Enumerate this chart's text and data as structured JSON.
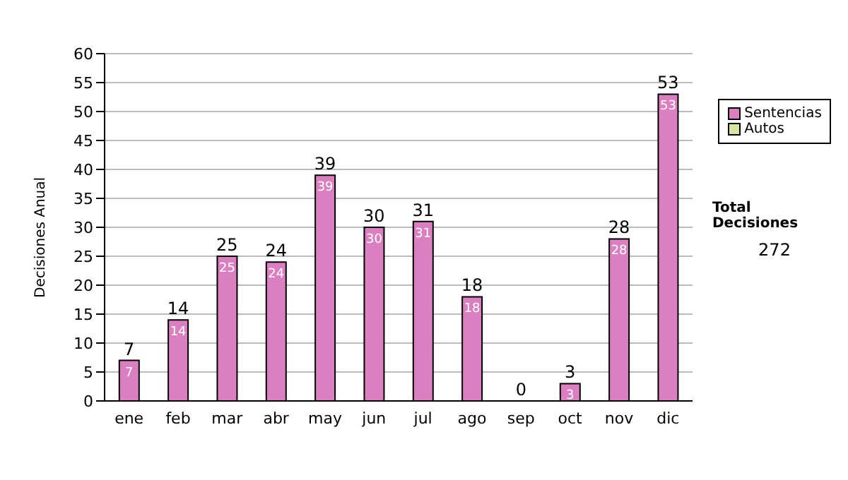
{
  "chart_data": {
    "type": "bar",
    "ylabel": "Decisiones Anual",
    "categories": [
      "ene",
      "feb",
      "mar",
      "abr",
      "may",
      "jun",
      "jul",
      "ago",
      "sep",
      "oct",
      "nov",
      "dic"
    ],
    "series": [
      {
        "name": "Sentencias",
        "color": "#dc7fc0",
        "values": [
          7,
          14,
          25,
          24,
          39,
          30,
          31,
          18,
          0,
          3,
          28,
          53
        ],
        "value_labels": [
          "7",
          "14",
          "25",
          "24",
          "39",
          "30",
          "31",
          "18",
          null,
          "3",
          "28",
          "53"
        ]
      },
      {
        "name": "Autos",
        "color": "#d6e6a0",
        "values": [
          0,
          0,
          0,
          0,
          0,
          0,
          0,
          0,
          0,
          0,
          0,
          0
        ]
      }
    ],
    "stacked": true,
    "totals": [
      "7",
      "14",
      "25",
      "24",
      "39",
      "30",
      "31",
      "18",
      "0",
      "3",
      "28",
      "53"
    ],
    "ylim": [
      0,
      60
    ],
    "yticks": [
      0,
      5,
      10,
      15,
      20,
      25,
      30,
      35,
      40,
      45,
      50,
      55,
      60
    ],
    "grid": "y",
    "legend": "right",
    "annotations": [
      "Total Decisiones",
      "272"
    ]
  }
}
